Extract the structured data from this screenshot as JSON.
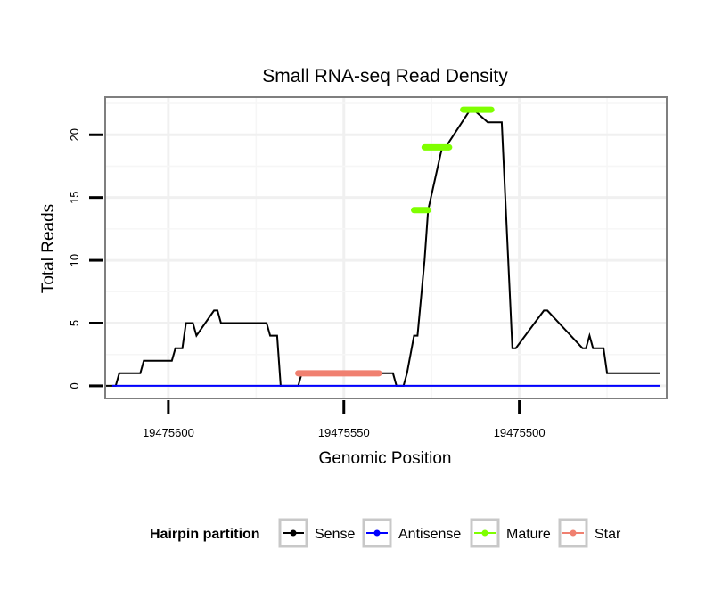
{
  "chart_data": {
    "type": "line",
    "title": "Small RNA-seq Read Density",
    "xlabel": "Genomic Position",
    "ylabel": "Total Reads",
    "xlim": [
      19475618,
      19475458
    ],
    "ylim": [
      -1,
      23
    ],
    "x_reversed": true,
    "x_ticks": [
      19475600,
      19475550,
      19475500
    ],
    "x_tick_labels": [
      "19475600",
      "19475550",
      "19475500"
    ],
    "y_ticks": [
      0,
      5,
      10,
      15,
      20
    ],
    "y_tick_labels": [
      "0",
      "5",
      "10",
      "15",
      "20"
    ],
    "grid": true,
    "legend": {
      "title": "Hairpin partition",
      "position": "bottom",
      "entries": [
        {
          "name": "Sense",
          "color": "#000000"
        },
        {
          "name": "Antisense",
          "color": "#0000ff"
        },
        {
          "name": "Mature",
          "color": "#7fff00"
        },
        {
          "name": "Star",
          "color": "#f08070"
        }
      ]
    },
    "series": [
      {
        "name": "Sense",
        "color": "#000000",
        "x": [
          19475618,
          19475615,
          19475614,
          19475608,
          19475607,
          19475599,
          19475598,
          19475596,
          19475595,
          19475593,
          19475592,
          19475587,
          19475586,
          19475585,
          19475584,
          19475581,
          19475580,
          19475572,
          19475571,
          19475569,
          19475568,
          19475563,
          19475562,
          19475558,
          19475557,
          19475536,
          19475535,
          19475533,
          19475532,
          19475530,
          19475529,
          19475527,
          19475526,
          19475522,
          19475521,
          19475514,
          19475513,
          19475509,
          19475508,
          19475506,
          19475505,
          19475502,
          19475501,
          19475493,
          19475492,
          19475482,
          19475481,
          19475480,
          19475479,
          19475476,
          19475475,
          19475460
        ],
        "y": [
          0,
          0,
          1,
          1,
          2,
          2,
          3,
          3,
          5,
          5,
          4,
          6,
          6,
          5,
          5,
          5,
          5,
          5,
          4,
          4,
          0,
          0,
          1,
          1,
          1,
          1,
          0,
          0,
          1,
          4,
          4,
          10,
          14,
          19,
          19,
          22,
          22,
          21,
          21,
          21,
          21,
          3,
          3,
          6,
          6,
          3,
          3,
          4,
          3,
          3,
          1,
          1
        ]
      },
      {
        "name": "Antisense",
        "color": "#0000ff",
        "x": [
          19475616,
          19475460
        ],
        "y": [
          0,
          0
        ]
      },
      {
        "name": "Mature",
        "color": "#7fff00",
        "segments": [
          {
            "x": [
              19475530,
              19475526
            ],
            "y": 14
          },
          {
            "x": [
              19475527,
              19475520
            ],
            "y": 19
          },
          {
            "x": [
              19475516,
              19475508
            ],
            "y": 22
          }
        ]
      },
      {
        "name": "Star",
        "color": "#f08070",
        "segments": [
          {
            "x": [
              19475563,
              19475540
            ],
            "y": 1
          }
        ]
      }
    ]
  }
}
